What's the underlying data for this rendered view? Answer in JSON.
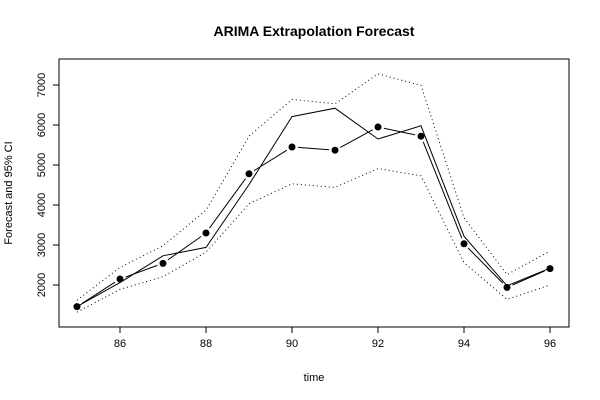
{
  "chart_data": {
    "type": "line",
    "title": "ARIMA Extrapolation Forecast",
    "xlabel": "time",
    "ylabel": "Forecast and 95% CI",
    "xlim": [
      85,
      96
    ],
    "ylim": [
      1200,
      7400
    ],
    "x_ticks": [
      86,
      88,
      90,
      92,
      94,
      96
    ],
    "y_ticks": [
      2000,
      3000,
      4000,
      5000,
      6000,
      7000
    ],
    "grid": false,
    "legend": "none",
    "x": [
      85,
      86,
      87,
      88,
      89,
      90,
      91,
      92,
      93,
      94,
      95,
      96
    ],
    "series": [
      {
        "role": "actual",
        "style": "solid-line",
        "color": "#000000",
        "values": [
          1460,
          2060,
          2730,
          2940,
          4510,
          6210,
          6420,
          5650,
          5980,
          3220,
          1980,
          2420
        ]
      },
      {
        "role": "forecast",
        "style": "points-with-segments",
        "color": "#000000",
        "values": [
          1460,
          2150,
          2540,
          3300,
          4780,
          5450,
          5370,
          5950,
          5720,
          3030,
          1940,
          2410
        ]
      },
      {
        "role": "upper-95",
        "style": "dotted-line",
        "color": "#000000",
        "values": [
          1620,
          2440,
          2980,
          3870,
          5720,
          6640,
          6530,
          7280,
          6990,
          3680,
          2260,
          2850
        ]
      },
      {
        "role": "lower-95",
        "style": "dotted-line",
        "color": "#000000",
        "values": [
          1320,
          1890,
          2210,
          2820,
          4030,
          4530,
          4440,
          4910,
          4730,
          2560,
          1640,
          2000
        ]
      }
    ]
  }
}
